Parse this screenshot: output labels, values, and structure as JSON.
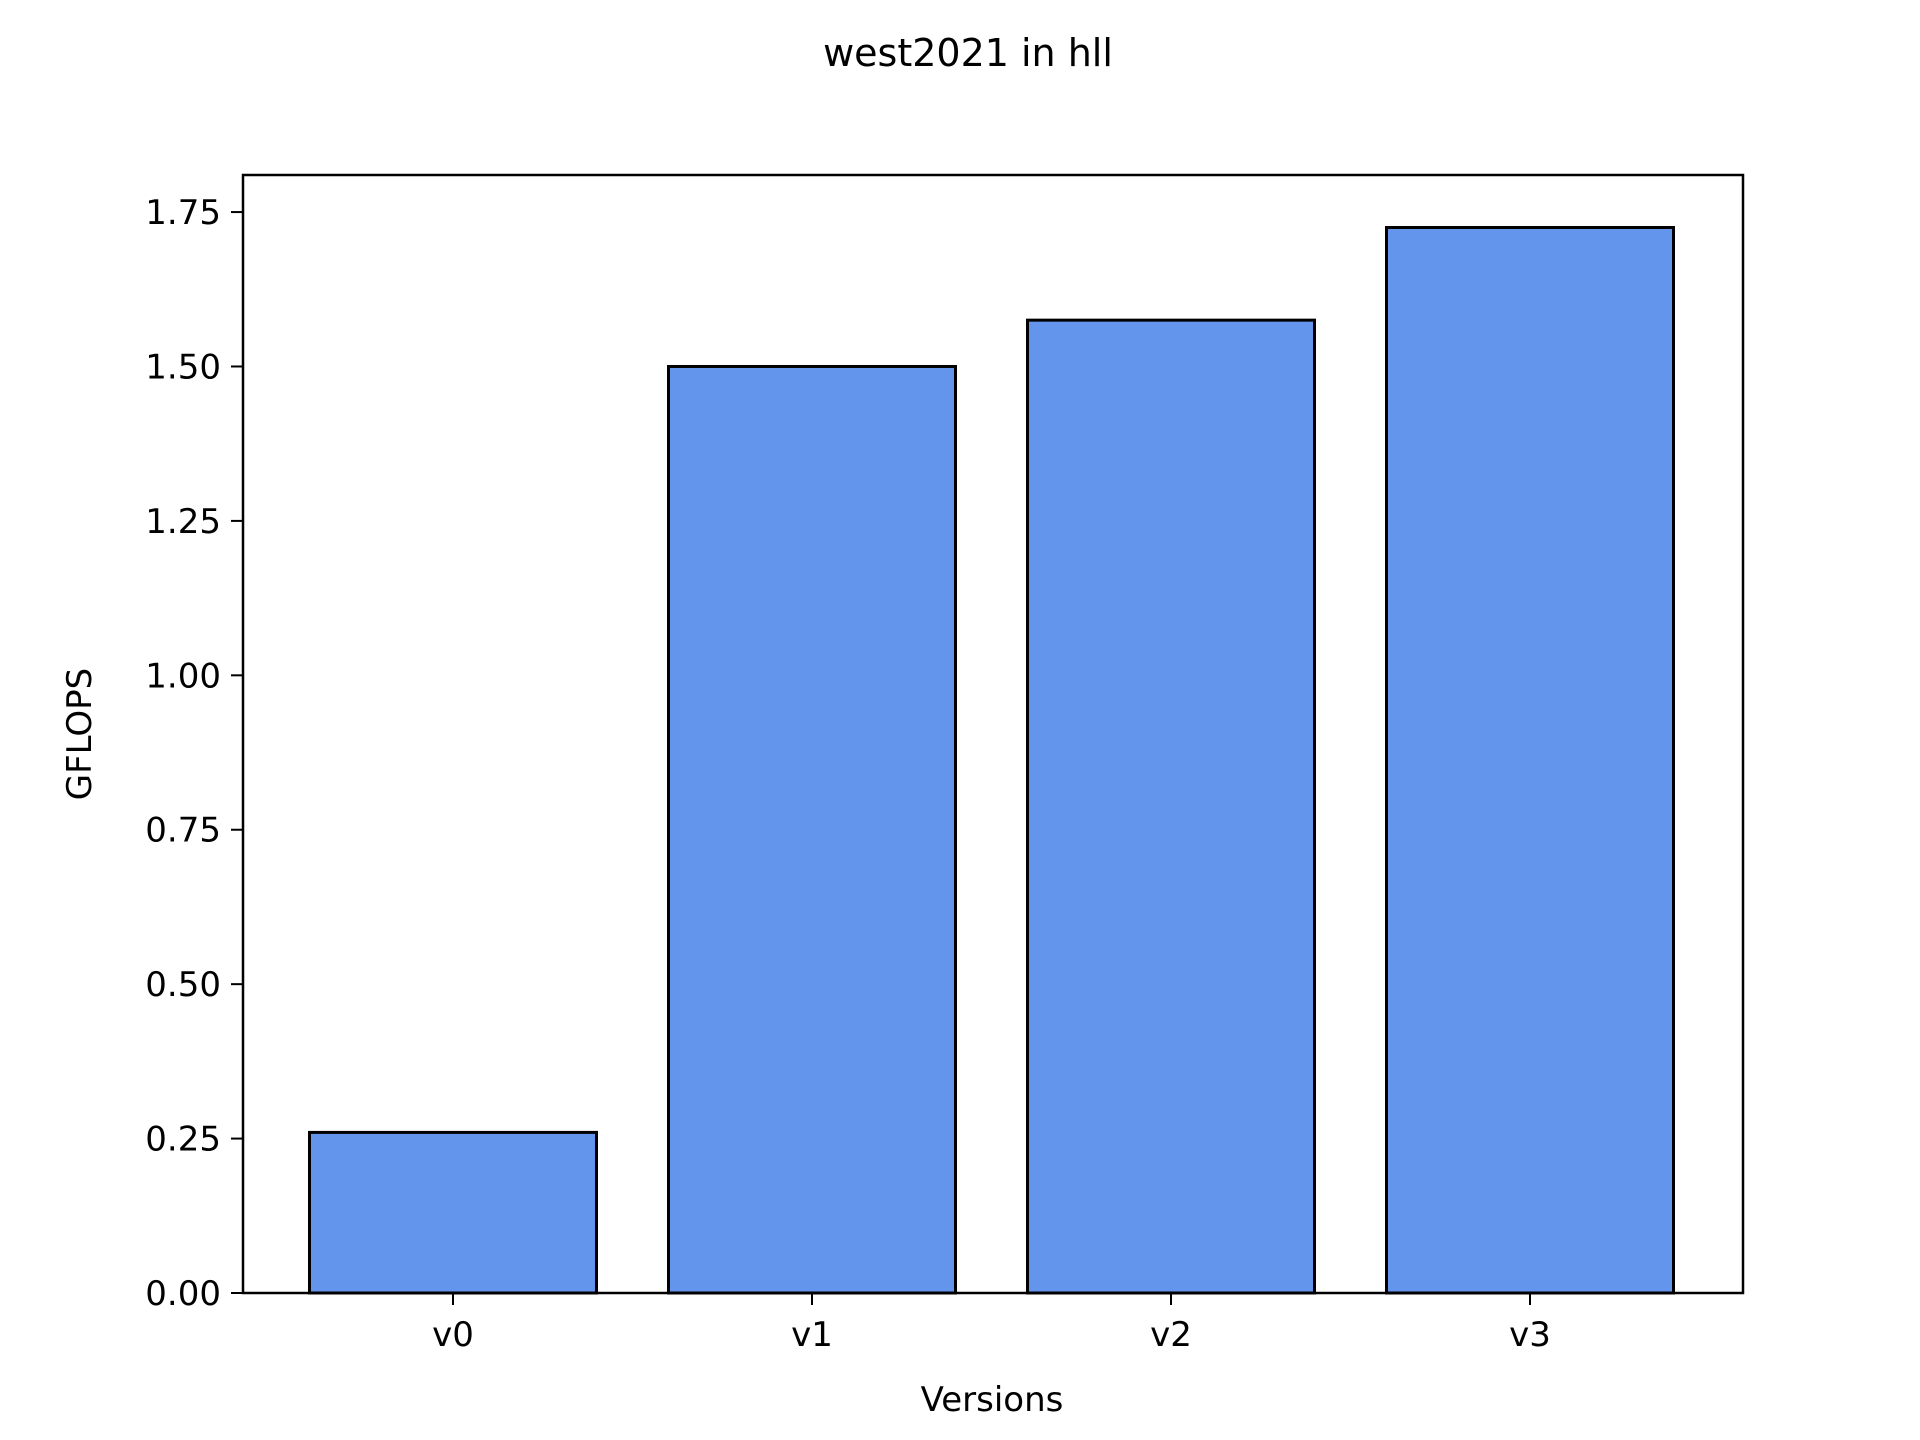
{
  "chart_data": {
    "type": "bar",
    "title": "west2021 in hll",
    "xlabel": "Versions",
    "ylabel": "GFLOPS",
    "categories": [
      "v0",
      "v1",
      "v2",
      "v3"
    ],
    "values": [
      0.26,
      1.5,
      1.575,
      1.725
    ],
    "ylim": [
      0,
      1.81
    ],
    "yticks": [
      0.0,
      0.25,
      0.5,
      0.75,
      1.0,
      1.25,
      1.5,
      1.75
    ],
    "ytick_labels": [
      "0.00",
      "0.25",
      "0.50",
      "0.75",
      "1.00",
      "1.25",
      "1.50",
      "1.75"
    ],
    "grid": false,
    "bar_color": "#6495ED",
    "edge_color": "#000000"
  }
}
